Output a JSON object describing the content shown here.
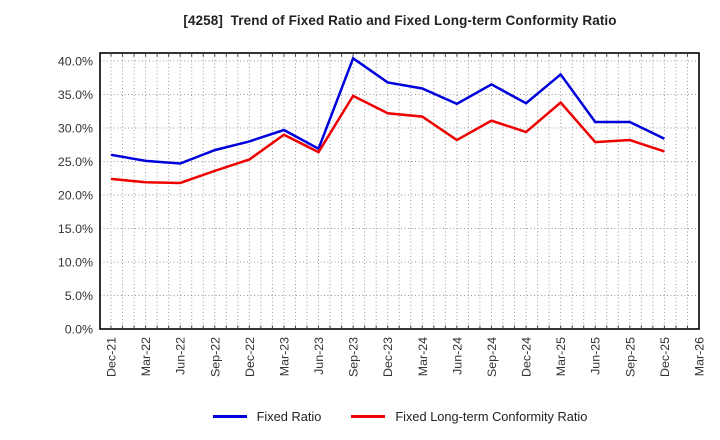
{
  "chart_data": {
    "type": "line",
    "title": "[4258]  Trend of Fixed Ratio and Fixed Long-term Conformity Ratio",
    "categories": [
      "Dec-21",
      "Mar-22",
      "Jun-22",
      "Sep-22",
      "Dec-22",
      "Mar-23",
      "Jun-23",
      "Sep-23",
      "Dec-23",
      "Mar-24",
      "Jun-24",
      "Sep-24",
      "Dec-24",
      "Mar-25",
      "Jun-25",
      "Sep-25",
      "Dec-25",
      "Mar-26"
    ],
    "series": [
      {
        "name": "Fixed Ratio",
        "color": "#0000dd",
        "values": [
          26.0,
          25.1,
          24.7,
          26.7,
          28.0,
          29.7,
          26.9,
          40.4,
          36.8,
          35.9,
          33.6,
          36.5,
          33.7,
          38.0,
          30.9,
          30.9,
          28.4,
          null
        ]
      },
      {
        "name": "Fixed Long-term Conformity Ratio",
        "color": "#ee0000",
        "values": [
          22.4,
          21.9,
          21.8,
          23.6,
          25.3,
          29.0,
          26.4,
          34.8,
          32.2,
          31.7,
          28.2,
          31.1,
          29.4,
          33.8,
          27.9,
          28.2,
          26.5,
          null
        ]
      }
    ],
    "y_ticks": [
      {
        "label": "0.0%",
        "value": 0
      },
      {
        "label": "5.0%",
        "value": 5
      },
      {
        "label": "10.0%",
        "value": 10
      },
      {
        "label": "15.0%",
        "value": 15
      },
      {
        "label": "20.0%",
        "value": 20
      },
      {
        "label": "25.0%",
        "value": 25
      },
      {
        "label": "30.0%",
        "value": 30
      },
      {
        "label": "35.0%",
        "value": 35
      },
      {
        "label": "40.0%",
        "value": 40
      }
    ],
    "ylim": [
      0,
      41.2
    ],
    "xlabel": "",
    "ylabel": "",
    "grid": "dotted gray; horizontal every 5%, vertical monthly (3 per quarter)",
    "legend_position": "bottom-center",
    "minor_x_divisions_per_interval": 3
  },
  "style": {
    "grid_color": "#999999",
    "border_color": "#000000",
    "tick_label_color": "#333333",
    "background": "#ffffff"
  }
}
